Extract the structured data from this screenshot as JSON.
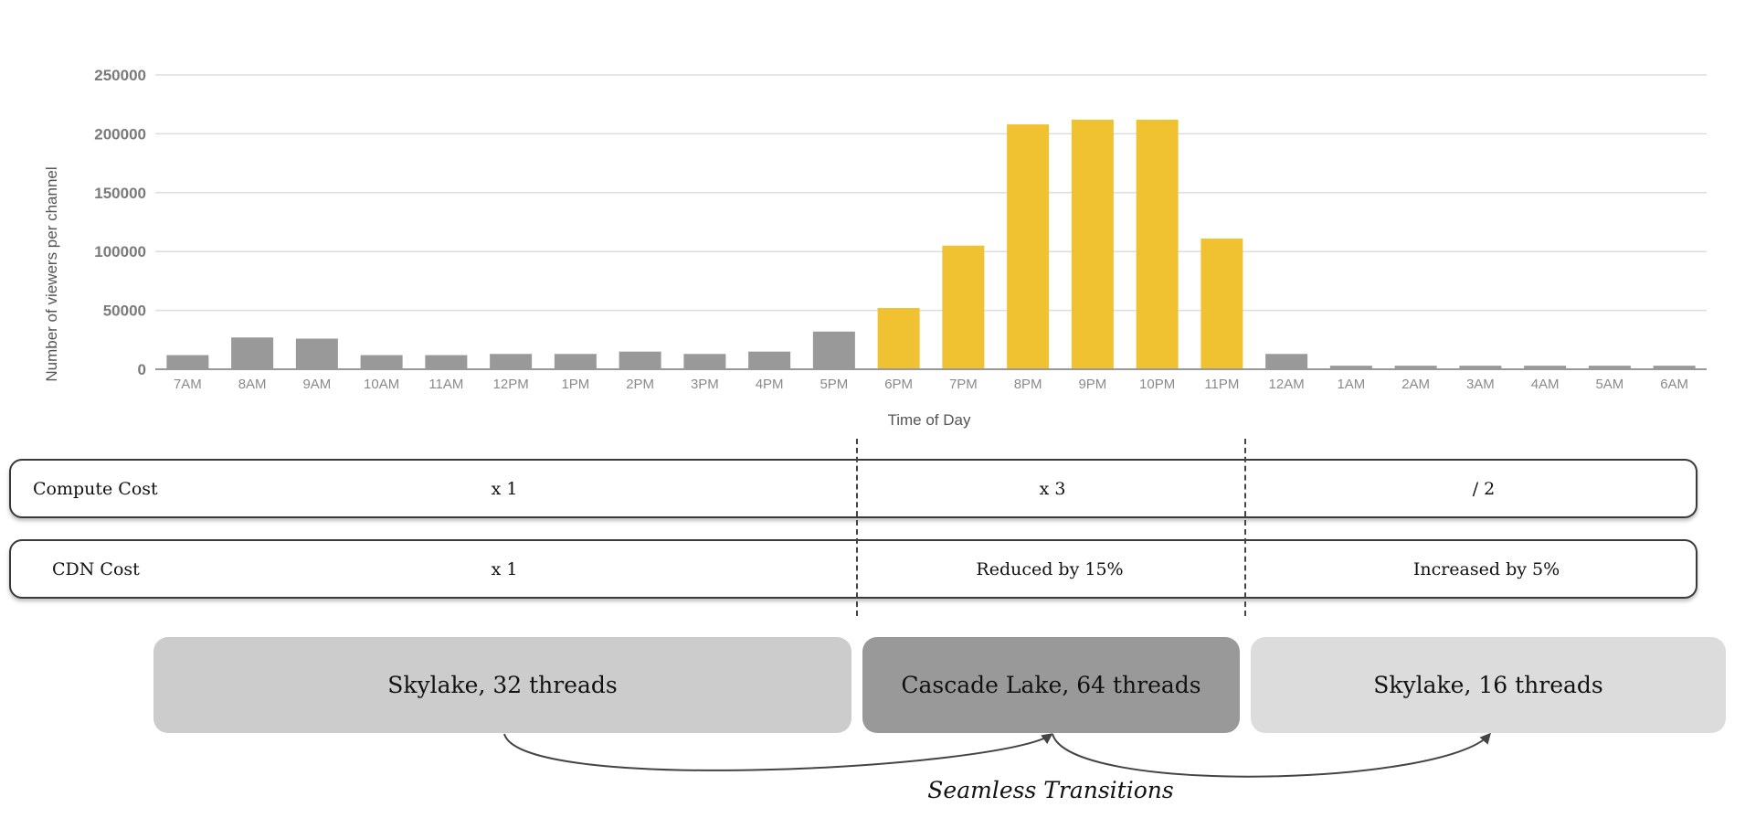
{
  "chart_data": {
    "type": "bar",
    "title": "",
    "xlabel": "Time of Day",
    "ylabel": "Number of viewers per channel",
    "ylim": [
      0,
      250000
    ],
    "yticks": [
      "0",
      "50000",
      "100000",
      "150000",
      "200000",
      "250000"
    ],
    "grid": true,
    "categories": [
      "7AM",
      "8AM",
      "9AM",
      "10AM",
      "11AM",
      "12PM",
      "1PM",
      "2PM",
      "3PM",
      "4PM",
      "5PM",
      "6PM",
      "7PM",
      "8PM",
      "9PM",
      "10PM",
      "11PM",
      "12AM",
      "1AM",
      "2AM",
      "3AM",
      "4AM",
      "5AM",
      "6AM"
    ],
    "values": [
      12000,
      27000,
      26000,
      12000,
      12000,
      13000,
      13000,
      15000,
      13000,
      15000,
      32000,
      52000,
      105000,
      208000,
      212000,
      212000,
      111000,
      13000,
      3000,
      3000,
      3000,
      3000,
      3000,
      3000
    ],
    "bar_colors": {
      "off_peak": "#999999",
      "peak": "#f0c232"
    },
    "peak_categories": [
      "6PM",
      "7PM",
      "8PM",
      "9PM",
      "10PM",
      "11PM"
    ]
  },
  "costs": {
    "compute": {
      "label": "Compute Cost",
      "values": [
        "x 1",
        "x 3",
        "/ 2"
      ]
    },
    "cdn": {
      "label": "CDN Cost",
      "values": [
        "x 1",
        "Reduced by 15%",
        "Increased by 5%"
      ]
    }
  },
  "hardware": [
    {
      "label": "Skylake, 32 threads",
      "color": "#cccccc"
    },
    {
      "label": "Cascade Lake,  64 threads",
      "color": "#999999"
    },
    {
      "label": "Skylake, 16 threads",
      "color": "#dcdcdc"
    }
  ],
  "transitions_label": "Seamless Transitions"
}
